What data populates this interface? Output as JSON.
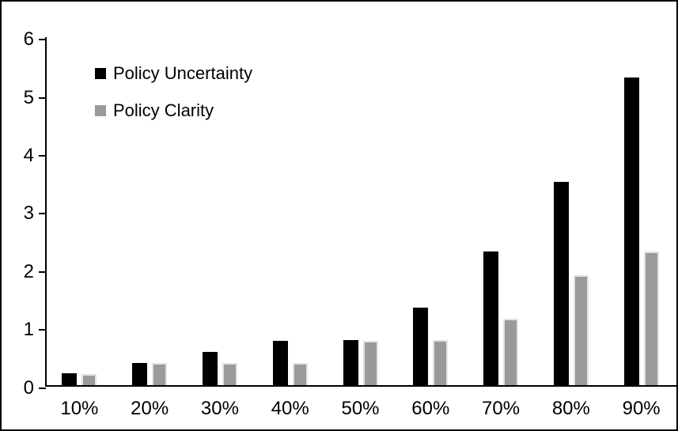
{
  "chart_data": {
    "type": "bar",
    "categories": [
      "10%",
      "20%",
      "30%",
      "40%",
      "50%",
      "60%",
      "70%",
      "80%",
      "90%"
    ],
    "series": [
      {
        "name": "Policy Uncertainty",
        "color": "#000000",
        "values": [
          0.2,
          0.38,
          0.57,
          0.76,
          0.77,
          1.33,
          2.3,
          3.5,
          5.3
        ]
      },
      {
        "name": "Policy Clarity",
        "color": "#9A9A9A",
        "values": [
          0.19,
          0.38,
          0.38,
          0.38,
          0.76,
          0.77,
          1.15,
          1.9,
          2.3
        ]
      }
    ],
    "title": "",
    "xlabel": "",
    "ylabel": "",
    "ylim": [
      0,
      6
    ],
    "y_ticks": [
      0,
      1,
      2,
      3,
      4,
      5,
      6
    ],
    "y_tick_labels": [
      "0",
      "1",
      "2",
      "3",
      "4",
      "5",
      "6"
    ],
    "legend_position": "top-left-inside",
    "grid": false,
    "frame_color": "#000000",
    "background_color": "#FFFFFF"
  }
}
